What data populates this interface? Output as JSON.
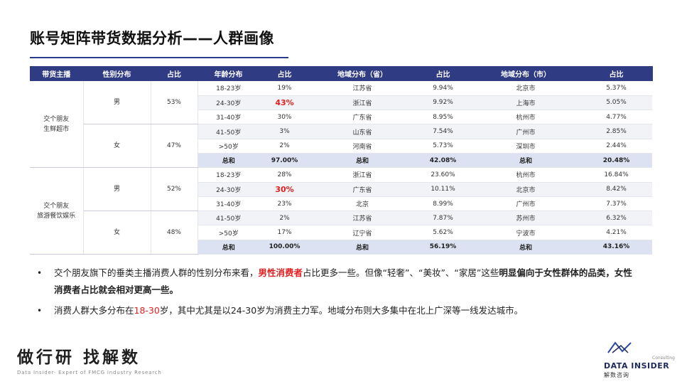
{
  "title": "账号矩阵带货数据分析——人群画像",
  "table": {
    "headers": [
      "带货主播",
      "性别分布",
      "占比",
      "年龄分布",
      "占比",
      "地域分布（省）",
      "占比",
      "地域分布（市）",
      "占比"
    ],
    "groups": [
      {
        "anchor": "交个朋友\n生鲜超市",
        "genders": [
          {
            "label": "男",
            "pct": "53%"
          },
          {
            "label": "女",
            "pct": "47%"
          }
        ],
        "rows": [
          {
            "age": "18-23岁",
            "age_pct": "19%",
            "prov": "江苏省",
            "prov_pct": "9.94%",
            "city": "北京市",
            "city_pct": "5.37%"
          },
          {
            "age": "24-30岁",
            "age_pct": "43%",
            "prov": "浙江省",
            "prov_pct": "9.92%",
            "city": "上海市",
            "city_pct": "5.05%"
          },
          {
            "age": "31-40岁",
            "age_pct": "30%",
            "prov": "广东省",
            "prov_pct": "8.95%",
            "city": "杭州市",
            "city_pct": "4.77%"
          },
          {
            "age": "41-50岁",
            "age_pct": "3%",
            "prov": "山东省",
            "prov_pct": "7.54%",
            "city": "广州市",
            "city_pct": "2.85%"
          },
          {
            "age": ">50岁",
            "age_pct": "2%",
            "prov": "河南省",
            "prov_pct": "5.73%",
            "city": "深圳市",
            "city_pct": "2.44%"
          }
        ],
        "total": {
          "label1": "总和",
          "age_total": "97.00%",
          "label2": "总和",
          "prov_total": "42.08%",
          "label3": "总和",
          "city_total": "20.48%"
        }
      },
      {
        "anchor": "交个朋友\n旅游餐饮娱乐",
        "genders": [
          {
            "label": "男",
            "pct": "52%"
          },
          {
            "label": "女",
            "pct": "48%"
          }
        ],
        "rows": [
          {
            "age": "18-23岁",
            "age_pct": "28%",
            "prov": "浙江省",
            "prov_pct": "23.60%",
            "city": "杭州市",
            "city_pct": "16.84%"
          },
          {
            "age": "24-30岁",
            "age_pct": "30%",
            "prov": "广东省",
            "prov_pct": "10.11%",
            "city": "北京市",
            "city_pct": "8.42%"
          },
          {
            "age": "31-40岁",
            "age_pct": "23%",
            "prov": "北京",
            "prov_pct": "8.99%",
            "city": "广州市",
            "city_pct": "7.37%"
          },
          {
            "age": "41-50岁",
            "age_pct": "2%",
            "prov": "江苏省",
            "prov_pct": "7.87%",
            "city": "苏州市",
            "city_pct": "6.32%"
          },
          {
            "age": ">50岁",
            "age_pct": "17%",
            "prov": "辽宁省",
            "prov_pct": "5.62%",
            "city": "宁波市",
            "city_pct": "4.21%"
          }
        ],
        "total": {
          "label1": "总和",
          "age_total": "100.00%",
          "label2": "总和",
          "prov_total": "56.19%",
          "label3": "总和",
          "city_total": "43.16%"
        }
      }
    ]
  },
  "bullets": {
    "b1": {
      "t1": "交个朋友旗下的垂类主播消费人群的性别分布来看，",
      "t2": "男性消费者",
      "t3": "占比更多一些。但像“轻奢”、“美妆”、“家居”这些",
      "t4": "明显偏向于女性群体的品类，女性消费者占比就会相对更高一些。"
    },
    "b2": {
      "t1": "消费人群大多分布在",
      "t2": "18-30",
      "t3": "岁，其中尤其是以24-30岁为消费主力军。地域分布则大多集中在北上广深等一线发达城市。"
    }
  },
  "footer": {
    "logo_cn": "做行研 找解数",
    "logo_en": "Data Insider- Expert of FMCG Industry Research"
  },
  "brand": {
    "consulting": "Consulting",
    "name": "DATA INSIDER",
    "cn": "解数咨询"
  },
  "colors": {
    "header": "#2f3b82",
    "accent": "#e02020",
    "total_row": "#dde2f2"
  }
}
